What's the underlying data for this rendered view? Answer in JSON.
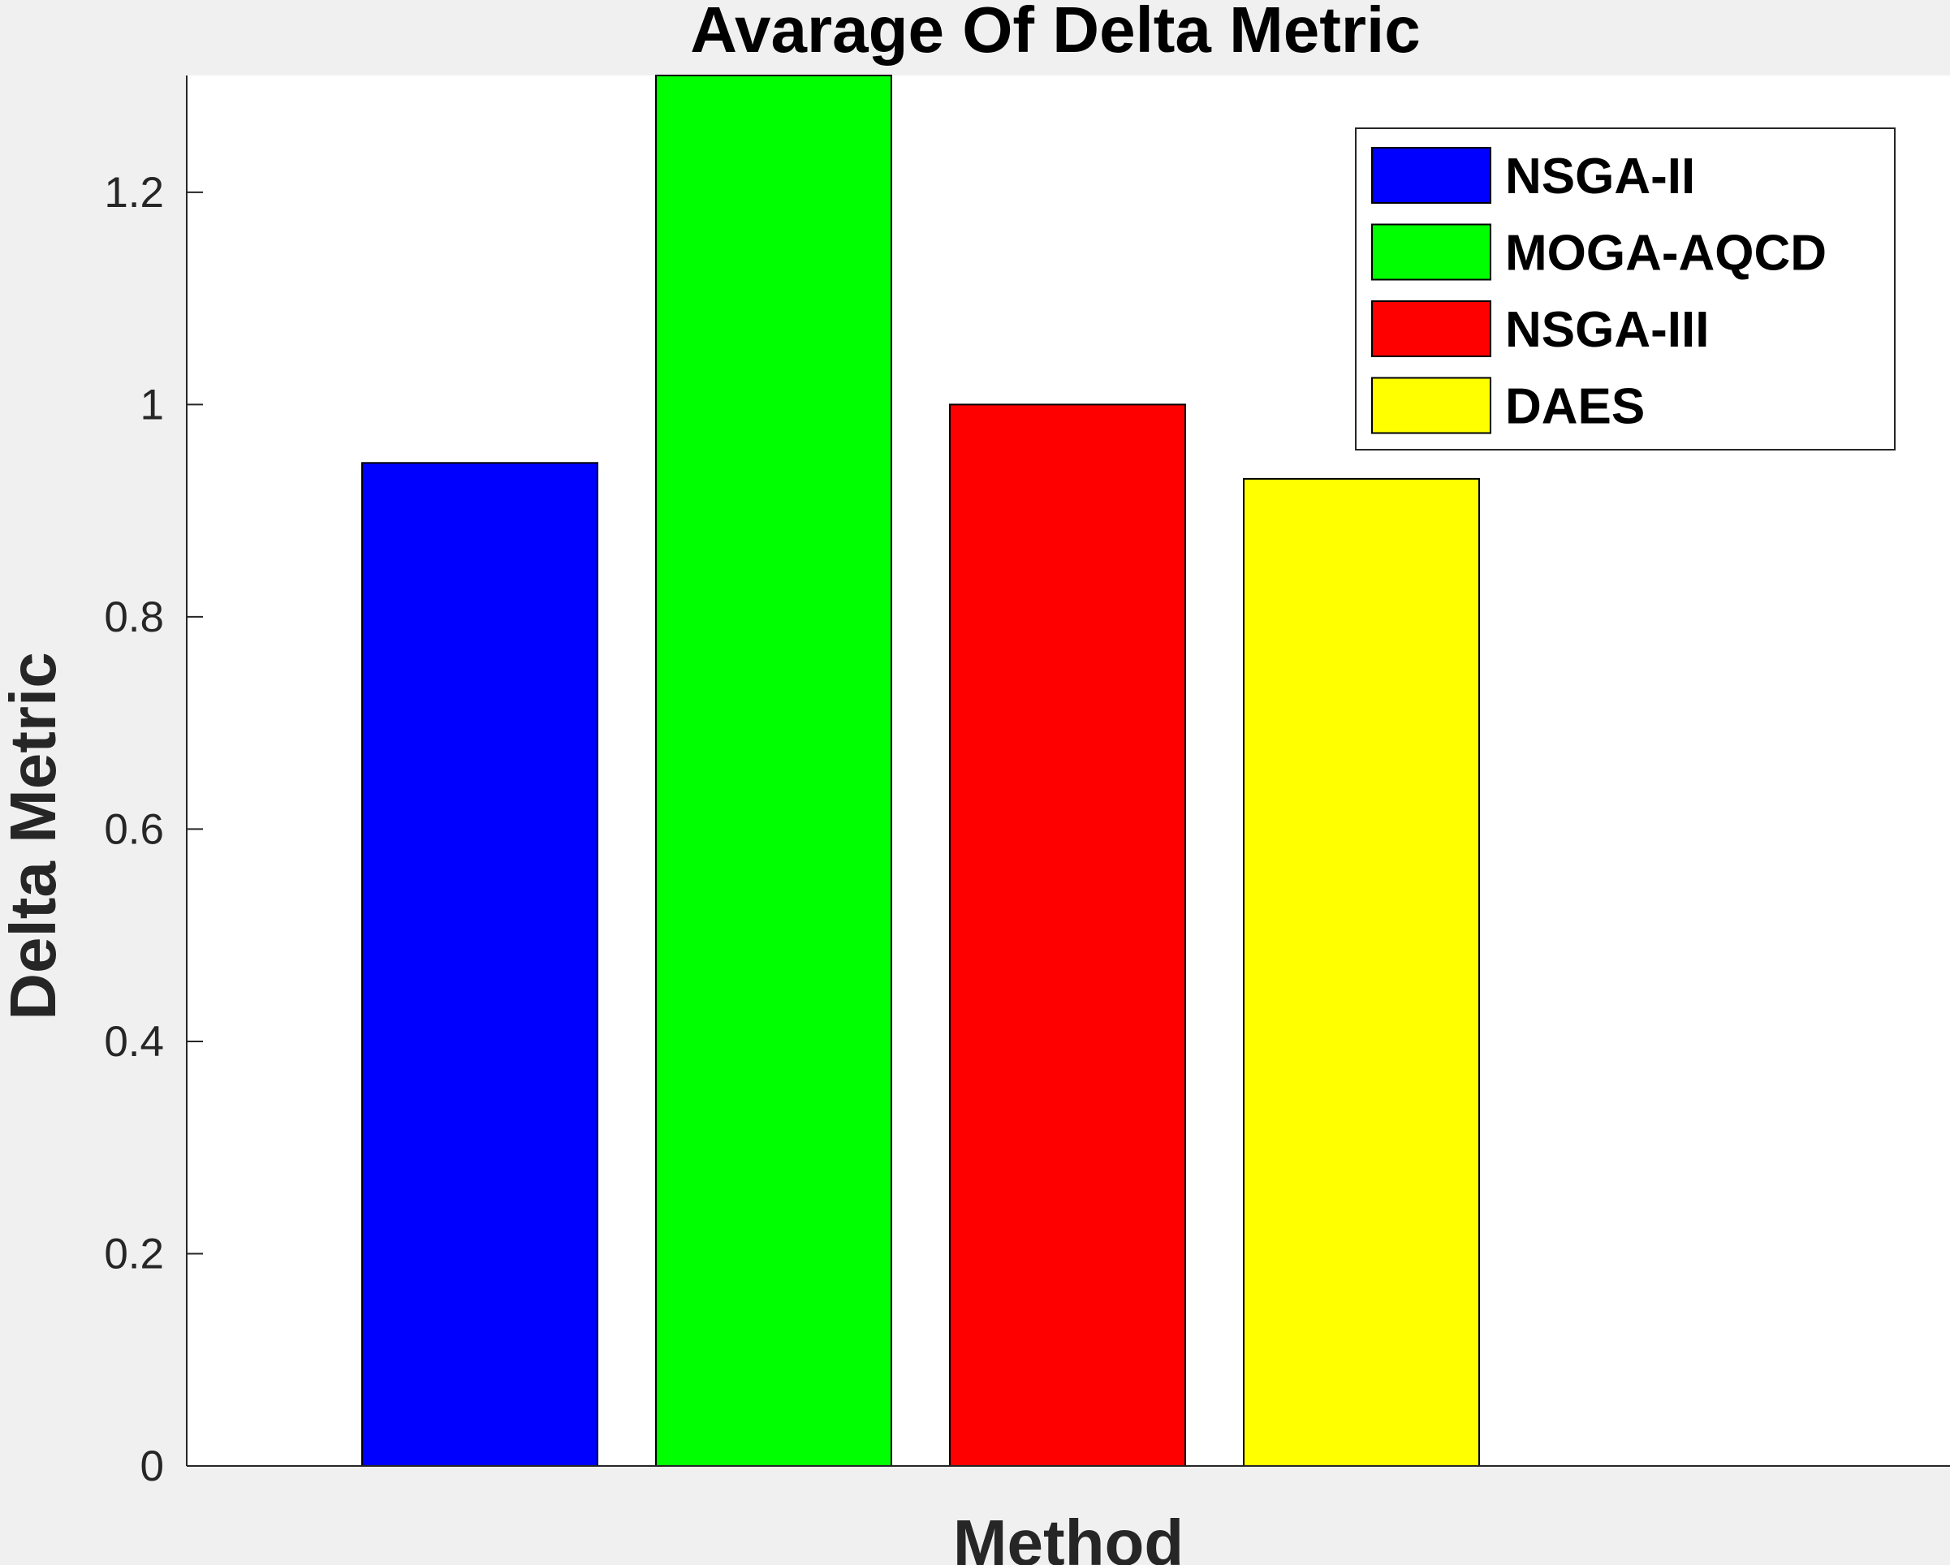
{
  "chart_data": {
    "type": "bar",
    "title": "Avarage Of Delta Metric",
    "xlabel": "Method",
    "ylabel": "Delta Metric",
    "ylim": [
      0,
      1.31
    ],
    "yticks": [
      0,
      0.2,
      0.4,
      0.6,
      0.8,
      1,
      1.2
    ],
    "ytick_labels": [
      "0",
      "0.2",
      "0.4",
      "0.6",
      "0.8",
      "1",
      "1.2"
    ],
    "grid": false,
    "legend_position": "top-right",
    "series": [
      {
        "name": "NSGA-II",
        "value": 0.945,
        "color": "#0000ff"
      },
      {
        "name": "MOGA-AQCD",
        "value": 1.31,
        "color": "#00ff00"
      },
      {
        "name": "NSGA-III",
        "value": 1.0,
        "color": "#ff0000"
      },
      {
        "name": "DAES",
        "value": 0.93,
        "color": "#ffff00"
      }
    ]
  }
}
